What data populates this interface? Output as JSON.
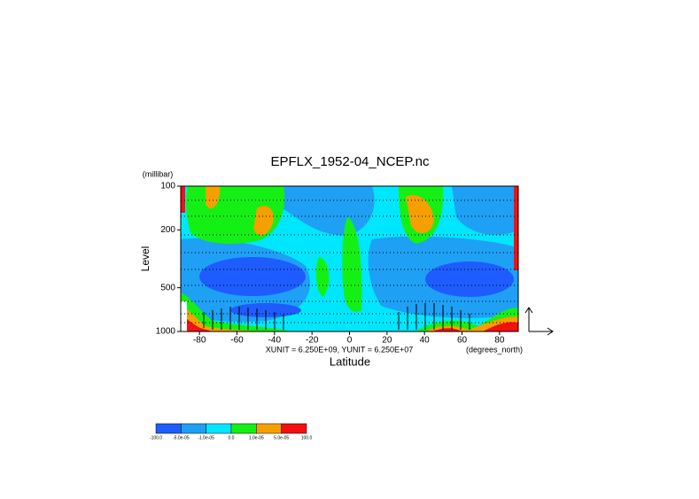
{
  "chart_data": {
    "type": "contour",
    "title": "EPFLX_1952-04_NCEP.nc",
    "y_unit": "(millibar)",
    "ylabel": "Level",
    "xlabel": "Latitude",
    "x_unit": "(degrees_north)",
    "vector_scale": "XUNIT = 6.250E+09, YUNIT = 6.250E+07",
    "xlim": [
      -90,
      90
    ],
    "xticks": [
      -80,
      -60,
      -40,
      -20,
      0,
      20,
      40,
      60,
      80
    ],
    "ylim": [
      1000,
      100
    ],
    "yticks": [
      100,
      200,
      500,
      1000
    ],
    "ylog": true,
    "colorbar": {
      "colors": [
        "#1e5cff",
        "#1ea0f5",
        "#00e6ff",
        "#14f014",
        "#f5a000",
        "#f51010"
      ],
      "labels": [
        "-100.0",
        "-5.0e-05",
        "-1.0e-05",
        "0.0",
        "1.0e-05",
        "5.0e-05",
        "100.0"
      ]
    }
  }
}
